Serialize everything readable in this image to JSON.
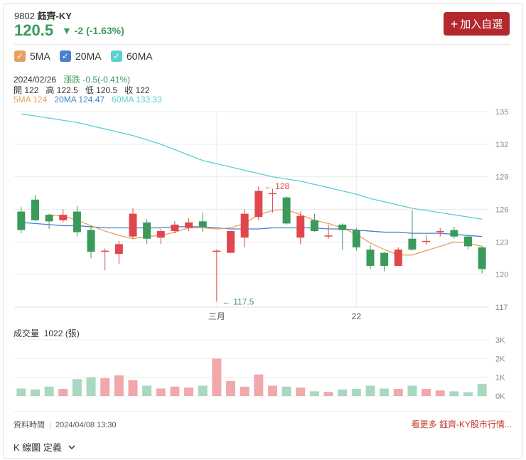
{
  "header": {
    "code": "9802",
    "name": "鈺齊-KY",
    "price": "120.5",
    "change": "▼ -2 (-1.63%)",
    "add_button_icon": "plus-icon",
    "add_button_label": "加入自選"
  },
  "ma_toggles": [
    {
      "label": "5MA",
      "color": "#e8a060",
      "checked": true
    },
    {
      "label": "20MA",
      "color": "#4a7fd0",
      "checked": true
    },
    {
      "label": "60MA",
      "color": "#5ccfd0",
      "checked": true
    }
  ],
  "info": {
    "date": "2024/02/26",
    "change_label": "漲跌",
    "change_value": "-0.5(-0.41%)",
    "open_label": "開",
    "open": "122",
    "high_label": "高",
    "high": "122.5",
    "low_label": "低",
    "low": "120.5",
    "close_label": "收",
    "close": "122",
    "ma5": "5MA 124",
    "ma20": "20MA 124.47",
    "ma60": "60MA 133.33"
  },
  "volume": {
    "title": "成交量",
    "value": "1022 (張)"
  },
  "footer": {
    "time_label": "資料時間",
    "time": "2024/04/08 13:30",
    "more_link": "看更多 鈺齊-KY股市行情...",
    "kline_def": "K 線圖 定義"
  },
  "colors": {
    "up": "#e0474c",
    "down": "#3a9a5b",
    "up_vol": "#f0a8ab",
    "down_vol": "#a8d8c0"
  },
  "chart_data": {
    "type": "candlestick",
    "price_ylim": [
      117,
      135
    ],
    "price_ticks": [
      "135",
      "132",
      "129",
      "126",
      "123",
      "120",
      "117"
    ],
    "x_ticks": [
      {
        "index": 14,
        "label": "三月"
      },
      {
        "index": 24,
        "label": "22"
      }
    ],
    "annotations": [
      {
        "index": 17,
        "value": "128",
        "type": "high",
        "label": "← 128"
      },
      {
        "index": 14,
        "value": "117.5",
        "type": "low",
        "label": "← 117.5"
      }
    ],
    "candles": [
      {
        "o": 125.8,
        "h": 126.2,
        "l": 123.8,
        "c": 124.1
      },
      {
        "o": 126.9,
        "h": 127.3,
        "l": 124.9,
        "c": 125
      },
      {
        "o": 125.5,
        "h": 125.6,
        "l": 124.2,
        "c": 124.9
      },
      {
        "o": 125,
        "h": 126,
        "l": 124.8,
        "c": 125.5
      },
      {
        "o": 125.8,
        "h": 126.3,
        "l": 123.5,
        "c": 123.9
      },
      {
        "o": 124.1,
        "h": 124.5,
        "l": 121.5,
        "c": 122.1
      },
      {
        "o": 122.2,
        "h": 122.4,
        "l": 120.4,
        "c": 122.2
      },
      {
        "o": 121.9,
        "h": 123.1,
        "l": 121,
        "c": 122.8
      },
      {
        "o": 123.5,
        "h": 126.1,
        "l": 123.3,
        "c": 125.6
      },
      {
        "o": 124.8,
        "h": 125.1,
        "l": 122.8,
        "c": 123.3
      },
      {
        "o": 123.4,
        "h": 124.2,
        "l": 122.8,
        "c": 124
      },
      {
        "o": 124,
        "h": 124.9,
        "l": 123.8,
        "c": 124.6
      },
      {
        "o": 124.3,
        "h": 125.2,
        "l": 124,
        "c": 124.8
      },
      {
        "o": 124.9,
        "h": 125.7,
        "l": 123.9,
        "c": 124.4
      },
      {
        "o": 122.2,
        "h": 122.3,
        "l": 117.5,
        "c": 122.2
      },
      {
        "o": 122,
        "h": 124,
        "l": 122,
        "c": 124
      },
      {
        "o": 123.4,
        "h": 126,
        "l": 122.5,
        "c": 125.6
      },
      {
        "o": 125.3,
        "h": 128.1,
        "l": 125,
        "c": 127.7
      },
      {
        "o": 127.5,
        "h": 127.9,
        "l": 125.7,
        "c": 127.5
      },
      {
        "o": 127.1,
        "h": 127.2,
        "l": 124.6,
        "c": 124.7
      },
      {
        "o": 123.4,
        "h": 125.8,
        "l": 122.8,
        "c": 125.4
      },
      {
        "o": 125,
        "h": 125.6,
        "l": 123.9,
        "c": 124
      },
      {
        "o": 123.6,
        "h": 124.6,
        "l": 123.3,
        "c": 123.6
      },
      {
        "o": 124.6,
        "h": 124.7,
        "l": 122.3,
        "c": 124.1
      },
      {
        "o": 124.1,
        "h": 124.3,
        "l": 122.2,
        "c": 122.5
      },
      {
        "o": 122.3,
        "h": 122.7,
        "l": 120.5,
        "c": 120.8
      },
      {
        "o": 122,
        "h": 122.1,
        "l": 120.3,
        "c": 120.8
      },
      {
        "o": 120.8,
        "h": 122.5,
        "l": 120.8,
        "c": 122.3
      },
      {
        "o": 123.3,
        "h": 125.9,
        "l": 122.2,
        "c": 122.3
      },
      {
        "o": 123.1,
        "h": 123.6,
        "l": 122.7,
        "c": 123.1
      },
      {
        "o": 124,
        "h": 124.3,
        "l": 123.5,
        "c": 124
      },
      {
        "o": 124.1,
        "h": 124.4,
        "l": 123.3,
        "c": 123.5
      },
      {
        "o": 123.5,
        "h": 123.6,
        "l": 122.3,
        "c": 122.6
      },
      {
        "o": 122.5,
        "h": 122.6,
        "l": 120.1,
        "c": 120.5
      }
    ],
    "ma5": [
      null,
      null,
      125.5,
      125.4,
      125.0,
      124.5,
      124.0,
      123.6,
      123.3,
      123.5,
      123.6,
      123.9,
      124.3,
      124.3,
      124.2,
      124.3,
      124.7,
      125.5,
      125.9,
      126.0,
      125.5,
      125.0,
      124.7,
      124.3,
      123.7,
      122.9,
      122.3,
      121.8,
      121.8,
      122.2,
      122.6,
      123.0,
      122.9,
      122.6
    ],
    "ma20": [
      124.8,
      124.7,
      124.6,
      124.5,
      124.5,
      124.4,
      124.3,
      124.3,
      124.3,
      124.3,
      124.3,
      124.4,
      124.4,
      124.4,
      124.3,
      124.2,
      124.2,
      124.2,
      124.3,
      124.3,
      124.3,
      124.3,
      124.2,
      124.2,
      124.1,
      124.0,
      123.9,
      123.9,
      123.8,
      123.8,
      123.8,
      123.7,
      123.6,
      123.5
    ],
    "ma60": [
      134.8,
      134.6,
      134.4,
      134.2,
      134.0,
      133.7,
      133.4,
      133.1,
      132.8,
      132.4,
      132.0,
      131.5,
      131.0,
      130.5,
      130.2,
      129.9,
      129.6,
      129.3,
      129.0,
      128.8,
      128.6,
      128.3,
      128.0,
      127.7,
      127.4,
      127.0,
      126.7,
      126.4,
      126.1,
      125.9,
      125.7,
      125.5,
      125.3,
      125.1
    ],
    "volume_ylim": [
      0,
      3000
    ],
    "volume_ticks": [
      "3K",
      "2K",
      "1K",
      "0K"
    ],
    "volumes": [
      400,
      350,
      500,
      380,
      900,
      1000,
      950,
      1100,
      850,
      550,
      400,
      500,
      450,
      550,
      2000,
      800,
      500,
      1150,
      550,
      500,
      450,
      250,
      220,
      350,
      380,
      550,
      400,
      380,
      550,
      380,
      300,
      250,
      200,
      650
    ]
  }
}
